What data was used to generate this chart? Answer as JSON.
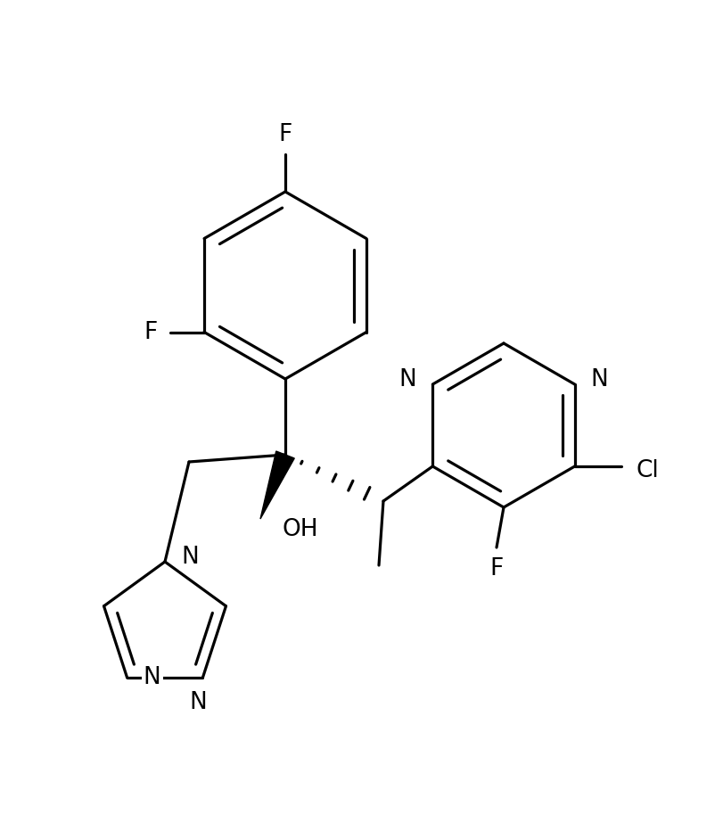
{
  "background_color": "#ffffff",
  "line_color": "#000000",
  "line_width": 2.3,
  "font_size": 19,
  "figsize": [
    8.12,
    9.32
  ],
  "dpi": 100,
  "xlim": [
    0,
    8.12
  ],
  "ylim": [
    0,
    9.32
  ]
}
